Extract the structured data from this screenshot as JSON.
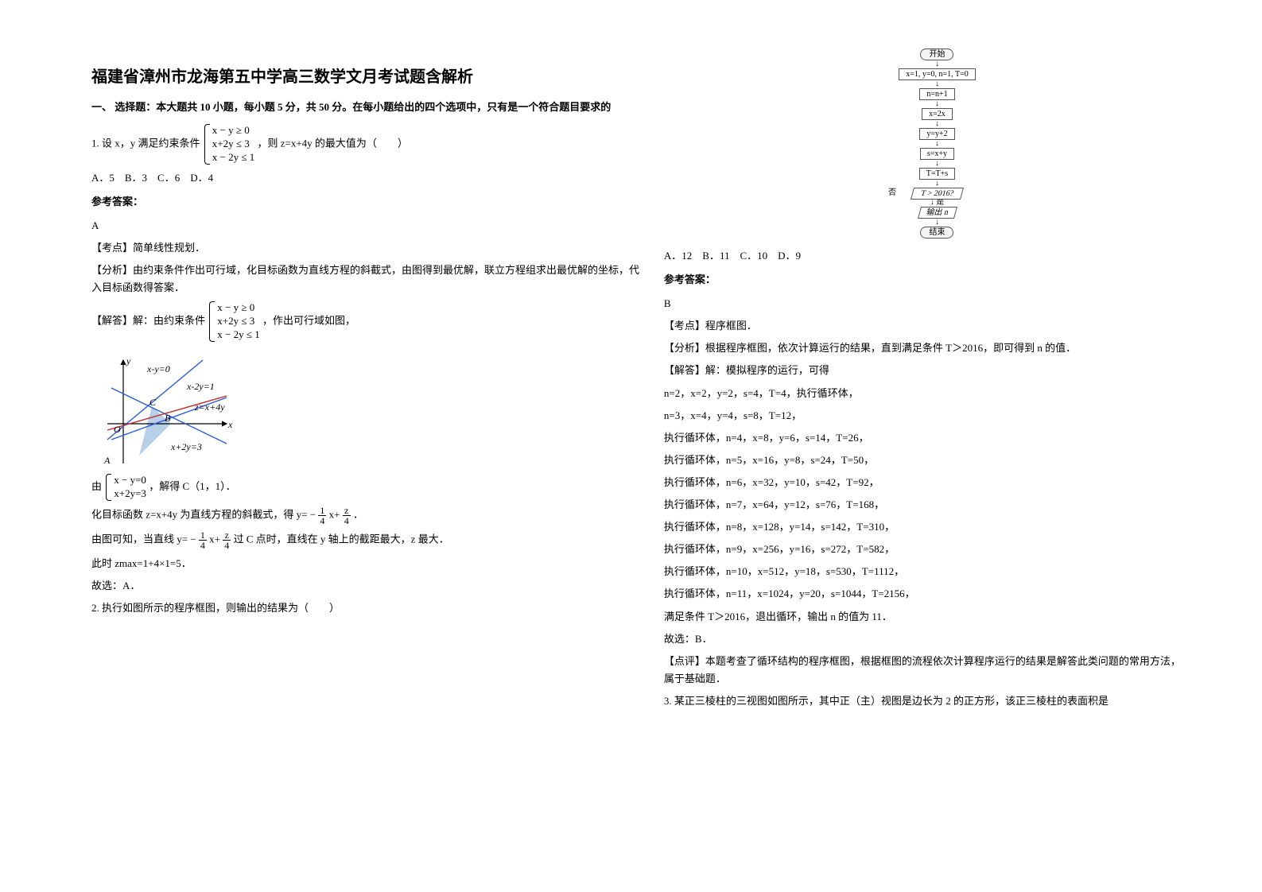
{
  "title": "福建省漳州市龙海第五中学高三数学文月考试题含解析",
  "section1_head": "一、 选择题：本大题共 10 小题，每小题 5 分，共 50 分。在每小题给出的四个选项中，只有是一个符合题目要求的",
  "q1": {
    "stem_prefix": "1. 设 x，y 满足约束条件",
    "c1": "x − y ≥ 0",
    "c2": "x+2y ≤ 3",
    "c3": "x − 2y ≤ 1",
    "stem_suffix": "，则 z=x+4y 的最大值为（　　）",
    "options": "A．5　B．3　C．6　D．4",
    "ans_label": "参考答案：",
    "ans": "A",
    "kd_label": "【考点】简单线性规划．",
    "fx": "【分析】由约束条件作出可行域，化目标函数为直线方程的斜截式，由图得到最优解，联立方程组求出最优解的坐标，代入目标函数得答案．",
    "jd_prefix": "【解答】解：由约束条件",
    "jd_suffix": "，作出可行域如图，",
    "graph_labels": {
      "l1": "x-y=0",
      "l2": "x-2y=1",
      "l3": "z=x+4y",
      "l4": "x+2y=3",
      "O": "O",
      "A": "A",
      "B": "B",
      "C": "C",
      "x": "x",
      "y": "y"
    },
    "solve_prefix": "由",
    "s1": "x − y=0",
    "s2": "x+2y=3",
    "solve_suffix": "，解得 C（1，1）．",
    "line1_a": "化目标函数 z=x+4y 为直线方程的斜截式，得 y= −",
    "line1_b": "x+",
    "line1_c": "．",
    "line2_a": "由图可知，当直线 y= −",
    "line2_b": "x+",
    "line2_c": "过 C 点时，直线在 y 轴上的截距最大，z 最大．",
    "line3": "此时 zmax=1+4×1=5．",
    "line4": "故选：A．"
  },
  "q2": {
    "stem": "2. 执行如图所示的程序框图，则输出的结果为（　　）",
    "flow": {
      "start": "开始",
      "init": "x=1, y=0, n=1, T=0",
      "b1": "n=n+1",
      "b2": "x=2x",
      "b3": "y=y+2",
      "b4": "s=x+y",
      "b5": "T=T+s",
      "cond": "T > 2016?",
      "yes": "是",
      "no": "否",
      "out": "输出 n",
      "end": "结束"
    },
    "options": "A．12　B．11　C．10　D．9",
    "ans_label": "参考答案：",
    "ans": "B",
    "kd": "【考点】程序框图．",
    "fx": "【分析】根据程序框图，依次计算运行的结果，直到满足条件 T＞2016，即可得到 n 的值．",
    "jd_head": "【解答】解：模拟程序的运行，可得",
    "steps": [
      "n=2，x=2，y=2，s=4，T=4，执行循环体，",
      "n=3，x=4，y=4，s=8，T=12，",
      "执行循环体，n=4，x=8，y=6，s=14，T=26，",
      "执行循环体，n=5，x=16，y=8，s=24，T=50，",
      "执行循环体，n=6，x=32，y=10，s=42，T=92，",
      "执行循环体，n=7，x=64，y=12，s=76，T=168，",
      "执行循环体，n=8，x=128，y=14，s=142，T=310，",
      "执行循环体，n=9，x=256，y=16，s=272，T=582，",
      "执行循环体，n=10，x=512，y=18，s=530，T=1112，",
      "执行循环体，n=11，x=1024，y=20，s=1044，T=2156，"
    ],
    "tail1": "满足条件 T＞2016，退出循环，输出 n 的值为 11．",
    "tail2": "故选：B．",
    "dp": "【点评】本题考查了循环结构的程序框图，根据框图的流程依次计算程序运行的结果是解答此类问题的常用方法，属于基础题．"
  },
  "q3": {
    "stem_a": "3. 某正三棱柱的三视图如图所示，其中正（主）视图是边长为",
    "stem_num": "2",
    "stem_b": "的正方形，该正三棱柱的表面积是"
  }
}
